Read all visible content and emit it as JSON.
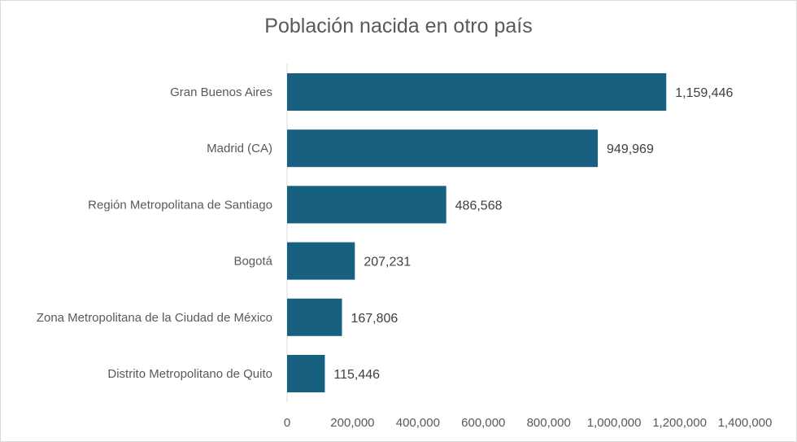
{
  "chart_data": {
    "type": "bar",
    "orientation": "horizontal",
    "title": "Población nacida en otro país",
    "categories": [
      "Gran Buenos Aires",
      "Madrid (CA)",
      "Región Metropolitana de Santiago",
      "Bogotá",
      "Zona Metropolitana de la Ciudad de México",
      "Distrito Metropolitano de Quito"
    ],
    "values": [
      1159446,
      949969,
      486568,
      207231,
      167806,
      115446
    ],
    "data_labels": [
      "1,159,446",
      "949,969",
      "486,568",
      "207,231",
      "167,806",
      "115,446"
    ],
    "xlim": [
      0,
      1400000
    ],
    "xticks": [
      0,
      200000,
      400000,
      600000,
      800000,
      1000000,
      1200000,
      1400000
    ],
    "xtick_labels": [
      "0",
      "200,000",
      "400,000",
      "600,000",
      "800,000",
      "1,000,000",
      "1,200,000",
      "1,400,000"
    ],
    "xlabel": "",
    "ylabel": "",
    "grid": false,
    "legend": "none",
    "bar_color": "#17607f",
    "axis_color": "#d9d9d9"
  }
}
